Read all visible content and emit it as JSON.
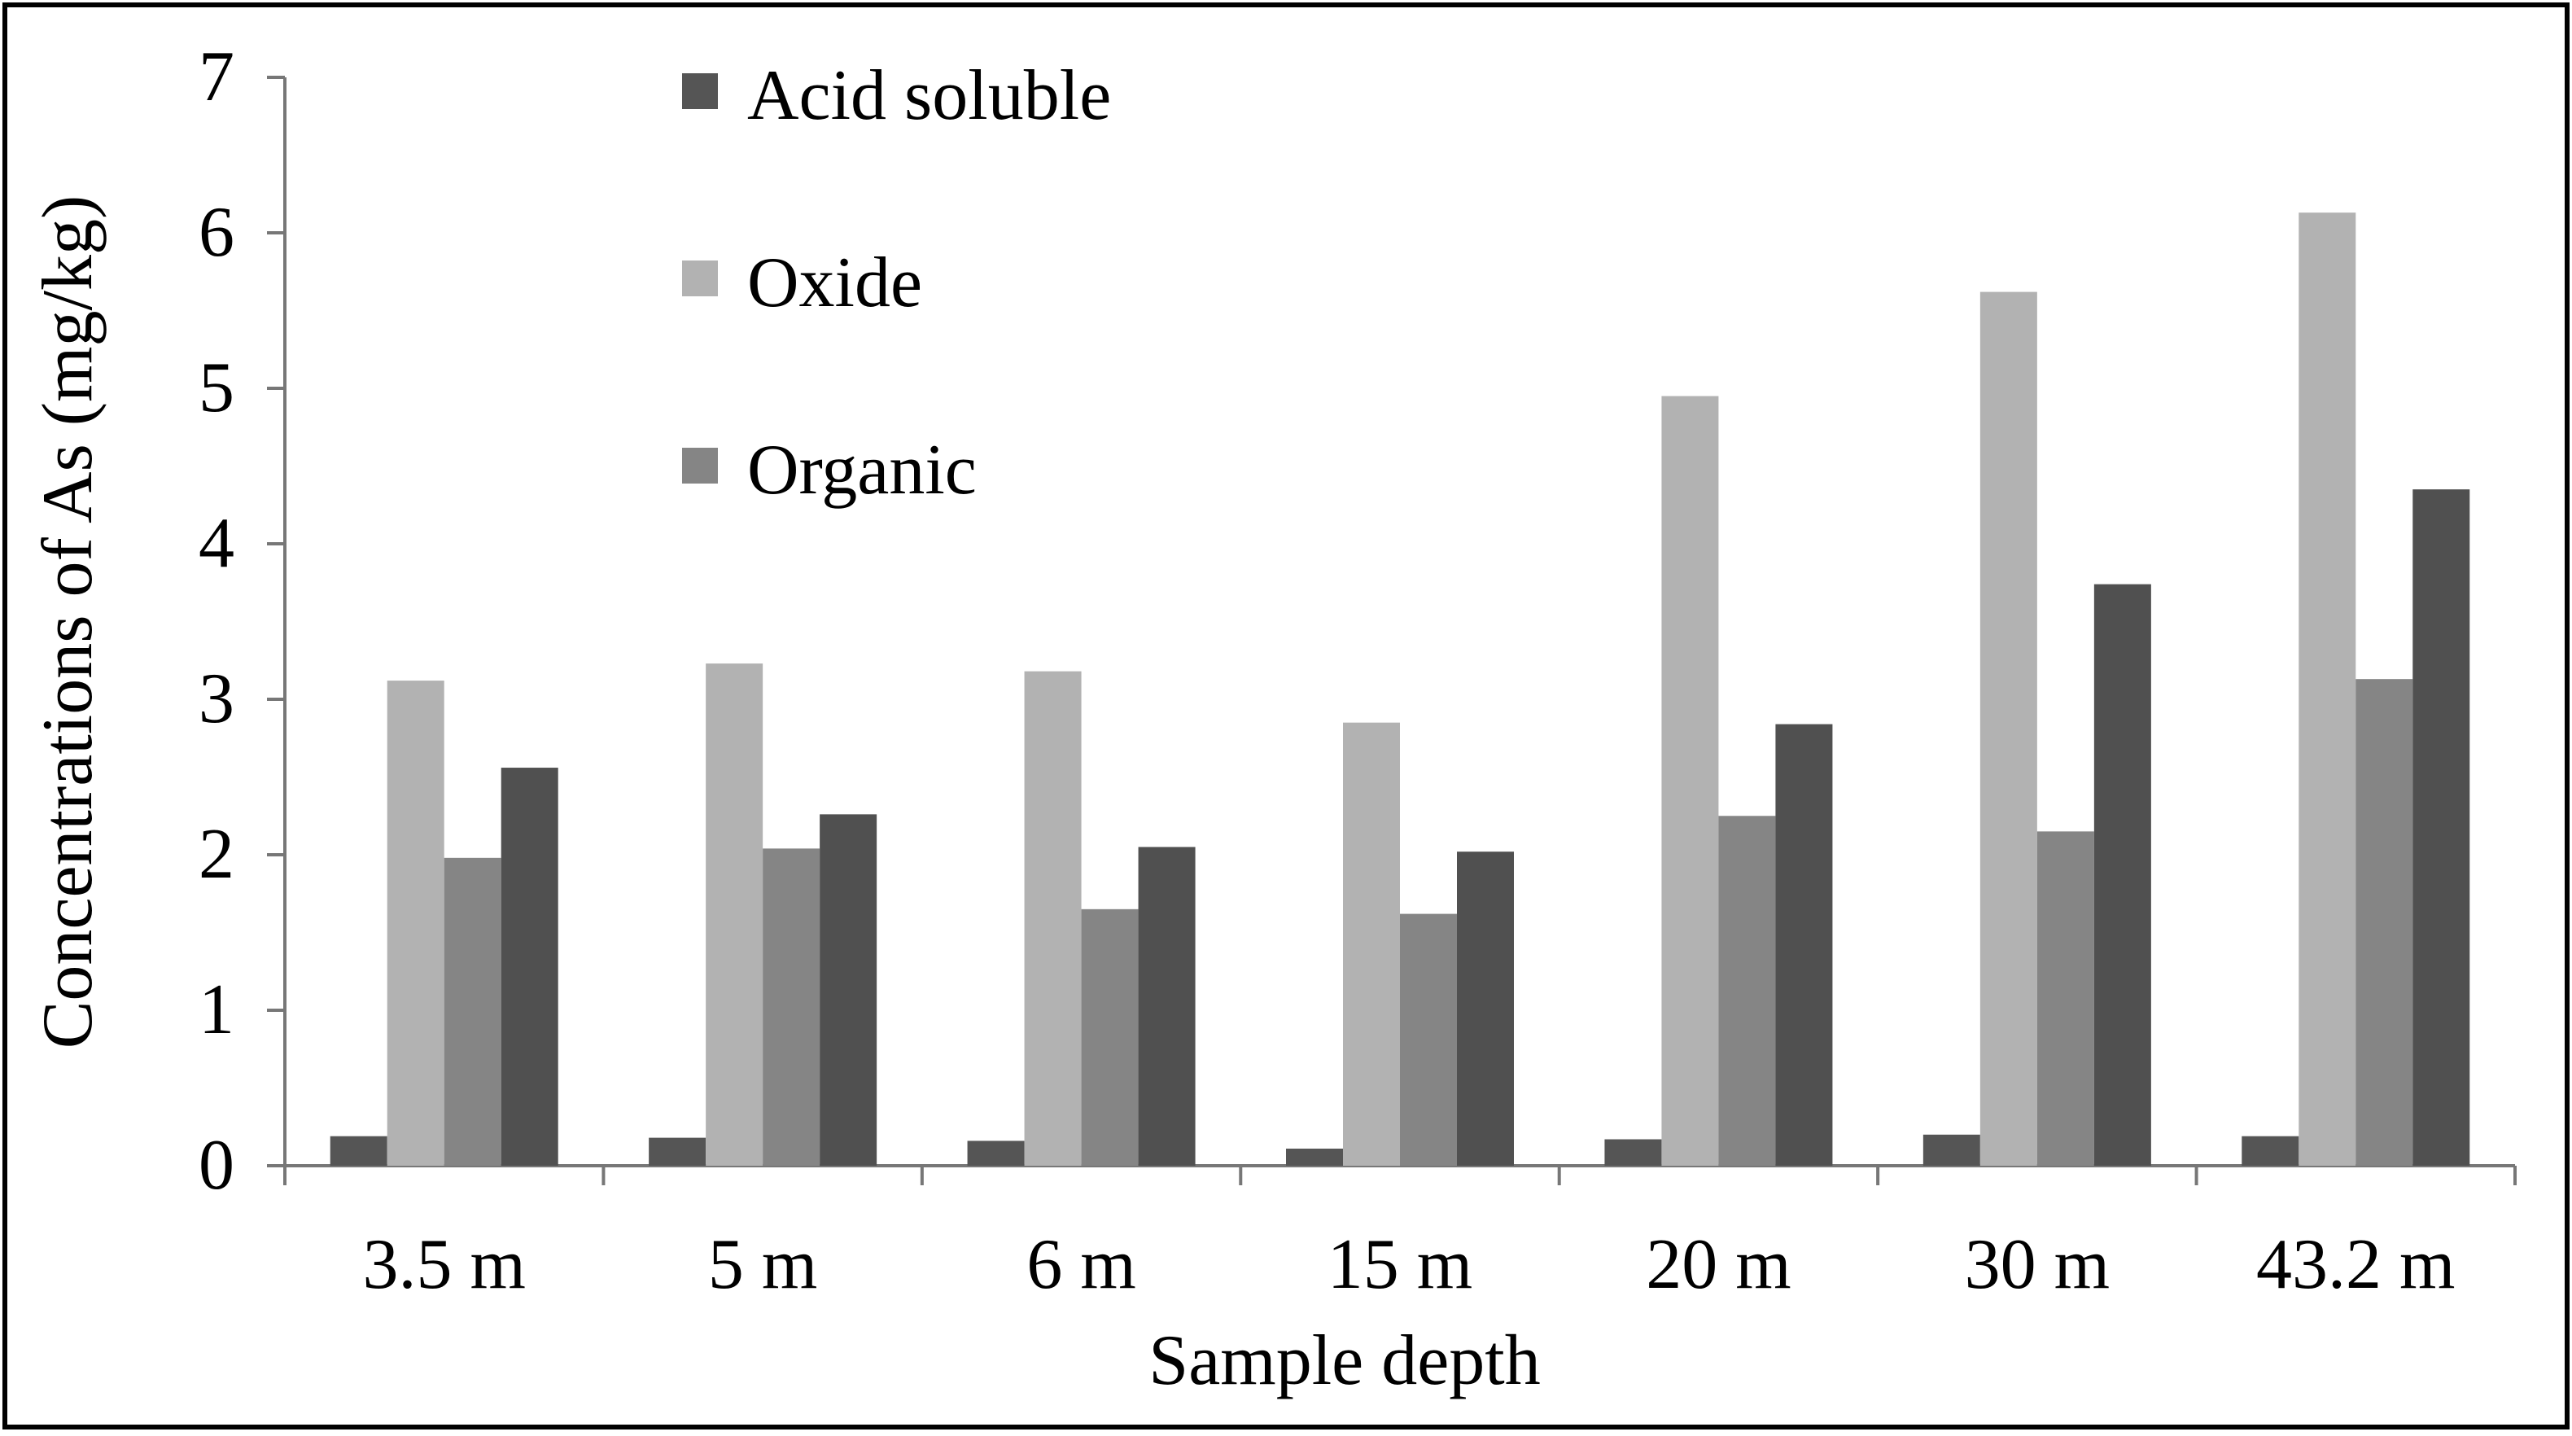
{
  "chart_data": {
    "type": "bar",
    "title": "",
    "xlabel": "Sample depth",
    "ylabel": "Concentrations of As (mg/kg)",
    "ylim": [
      0,
      7
    ],
    "yticks": [
      0,
      1,
      2,
      3,
      4,
      5,
      6,
      7
    ],
    "categories": [
      "3.5 m",
      "5 m",
      "6 m",
      "15 m",
      "20 m",
      "30 m",
      "43.2 m"
    ],
    "series": [
      {
        "name": "Acid soluble",
        "color": "#555555",
        "values": [
          0.19,
          0.18,
          0.16,
          0.11,
          0.17,
          0.2,
          0.19
        ]
      },
      {
        "name": "Oxide",
        "color": "#b2b2b2",
        "values": [
          3.12,
          3.23,
          3.18,
          2.85,
          4.95,
          5.62,
          6.13
        ]
      },
      {
        "name": "Organic",
        "color": "#858585",
        "values": [
          1.98,
          2.04,
          1.65,
          1.62,
          2.25,
          2.15,
          3.13
        ]
      },
      {
        "name": "",
        "color": "#505050",
        "values": [
          2.56,
          2.26,
          2.05,
          2.02,
          2.84,
          3.74,
          4.35
        ]
      }
    ],
    "legend": {
      "placement": "top-left",
      "entries": [
        "Acid soluble",
        "Oxide",
        "Organic"
      ]
    },
    "grid": false
  }
}
